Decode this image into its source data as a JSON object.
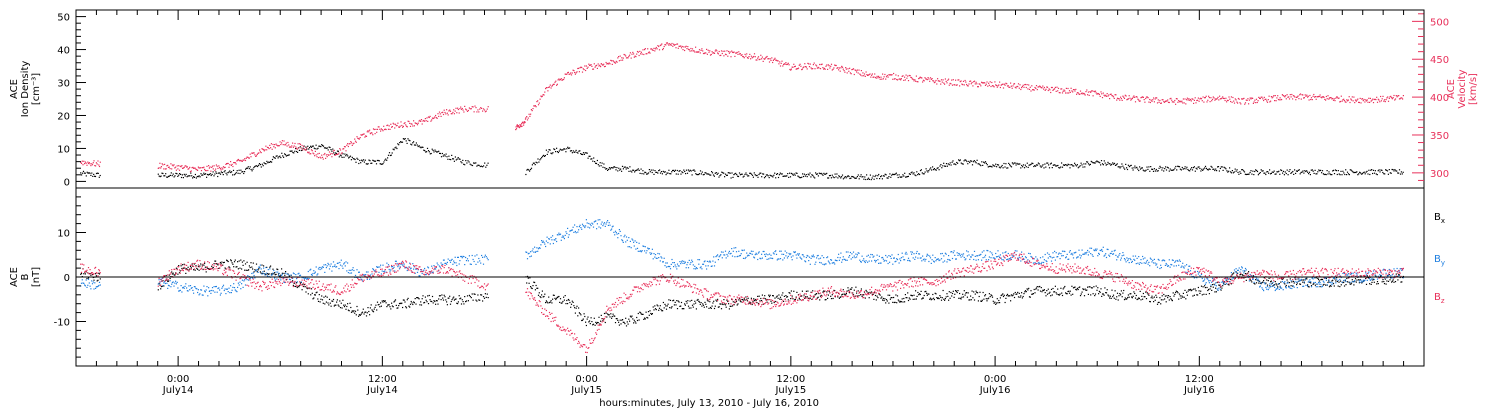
{
  "colors": {
    "axis": "#000000",
    "density": "#000000",
    "velocity": "#e8305a",
    "bx": "#000000",
    "by": "#1f7fe0",
    "bz": "#e8305a"
  },
  "chart_data": [
    {
      "type": "scatter",
      "panel": "top",
      "ylabel_lines": [
        "ACE",
        "Ion Density",
        "[cm⁻³]"
      ],
      "ylim": [
        -2,
        52
      ],
      "yticks": [
        0,
        10,
        20,
        30,
        40,
        50
      ],
      "yticklabels": [
        "0",
        "10",
        "20",
        "30",
        "40",
        "50"
      ],
      "y2label_lines": [
        "ACE",
        "Velocity",
        "[km/s]"
      ],
      "y2lim": [
        280,
        515
      ],
      "y2ticks": [
        300,
        350,
        400,
        450,
        500
      ],
      "y2ticklabels": [
        "300",
        "350",
        "400",
        "450",
        "500"
      ],
      "xlim_hours": [
        0,
        66
      ],
      "series": [
        {
          "axis": "left",
          "color_key": "density",
          "x": [
            0.2,
            1.2,
            2.8,
            4,
            5,
            6,
            7,
            8,
            9,
            10,
            11,
            12,
            13,
            14,
            15,
            16,
            17,
            18,
            19,
            20.2,
            20.8,
            21.5,
            22,
            23,
            24,
            25,
            26,
            27,
            28,
            29,
            30,
            31,
            32,
            33,
            34,
            35,
            36,
            37,
            38,
            39,
            40,
            41,
            42,
            43,
            44,
            45,
            46,
            47,
            48,
            49,
            50,
            51,
            52,
            53,
            54,
            55,
            56,
            57,
            58,
            59,
            60,
            61,
            62,
            63,
            64,
            65
          ],
          "y": [
            2.5,
            2,
            null,
            2,
            2,
            2,
            2.5,
            3,
            5,
            8,
            10,
            11,
            8,
            6,
            6,
            13,
            10,
            8,
            6,
            5,
            null,
            null,
            3,
            9,
            10,
            8,
            4,
            4,
            3,
            3,
            3,
            2.5,
            2,
            2,
            2,
            2,
            2,
            2,
            1.5,
            1.5,
            2,
            2.5,
            4,
            6,
            6,
            5,
            5,
            5,
            5,
            5,
            6,
            5,
            4,
            4,
            4,
            4,
            4,
            3,
            3,
            3,
            3,
            3,
            3,
            3,
            3,
            3
          ]
        },
        {
          "axis": "right",
          "color_key": "velocity",
          "x": [
            0.2,
            1.2,
            2.8,
            4,
            5,
            6,
            7,
            8,
            9,
            10,
            11,
            12,
            13,
            14,
            15,
            16,
            17,
            18,
            19,
            20.2,
            20.8,
            21.5,
            22,
            23,
            24,
            25,
            26,
            27,
            28,
            29,
            30,
            31,
            32,
            33,
            34,
            35,
            36,
            37,
            38,
            39,
            40,
            41,
            42,
            43,
            44,
            45,
            46,
            47,
            48,
            49,
            50,
            51,
            52,
            53,
            54,
            55,
            56,
            57,
            58,
            59,
            60,
            61,
            62,
            63,
            64,
            65
          ],
          "y": [
            315,
            312,
            null,
            310,
            308,
            305,
            308,
            315,
            330,
            340,
            335,
            322,
            330,
            350,
            360,
            365,
            368,
            380,
            385,
            385,
            null,
            360,
            370,
            410,
            430,
            440,
            445,
            455,
            462,
            470,
            465,
            460,
            458,
            455,
            450,
            440,
            442,
            440,
            435,
            428,
            428,
            425,
            422,
            420,
            418,
            417,
            415,
            412,
            410,
            408,
            405,
            400,
            398,
            396,
            395,
            397,
            400,
            395,
            397,
            400,
            401,
            400,
            398,
            397,
            398,
            400
          ]
        }
      ]
    },
    {
      "type": "scatter",
      "panel": "bottom",
      "ylabel_lines": [
        "ACE",
        "B",
        "[nT]"
      ],
      "ylim": [
        -20,
        20
      ],
      "yticks": [
        -10,
        0,
        10
      ],
      "yticklabels": [
        "-10",
        "0",
        "10"
      ],
      "zero_line": true,
      "xlim_hours": [
        0,
        66
      ],
      "xticks_hours": [
        5,
        15,
        25,
        35,
        45,
        55
      ],
      "xticklabels": [
        "0:00",
        "12:00",
        "0:00",
        "12:00",
        "0:00",
        "12:00"
      ],
      "xticklabels2": [
        "July14",
        "July14",
        "July15",
        "July15",
        "July16",
        "July16"
      ],
      "xlabel": "hours:minutes, July 13, 2010 - July 16, 2010",
      "legend": [
        {
          "main": "B",
          "sub": "x",
          "color_key": "bx"
        },
        {
          "main": "B",
          "sub": "y",
          "color_key": "by"
        },
        {
          "main": "B",
          "sub": "z",
          "color_key": "bz"
        }
      ],
      "series": [
        {
          "name": "Bx",
          "color_key": "bx",
          "x": [
            0.2,
            1.2,
            2.8,
            4,
            5,
            6,
            7,
            8,
            9,
            10,
            11,
            12,
            13,
            14,
            15,
            16,
            17,
            18,
            19,
            20.2,
            20.8,
            21.5,
            22,
            23,
            24,
            25,
            26,
            27,
            28,
            29,
            30,
            31,
            32,
            33,
            34,
            35,
            36,
            37,
            38,
            39,
            40,
            41,
            42,
            43,
            44,
            45,
            46,
            47,
            48,
            49,
            50,
            51,
            52,
            53,
            54,
            55,
            56,
            57,
            58,
            59,
            60,
            61,
            62,
            63,
            64,
            65
          ],
          "y": [
            1,
            0,
            null,
            -2,
            2,
            2,
            3,
            3,
            2,
            1,
            -2,
            -5,
            -6,
            -8,
            -6,
            -6,
            -5,
            -5,
            -5,
            -4,
            null,
            null,
            0,
            -5,
            -5,
            -10,
            -9,
            -10,
            -8,
            -6,
            -6,
            -6,
            -6,
            -5,
            -5,
            -4,
            -4,
            -4,
            -3,
            -4,
            -5,
            -4,
            -4,
            -4,
            -4,
            -5,
            -4,
            -3,
            -3,
            -3,
            -3,
            -4,
            -4,
            -5,
            -4,
            -3,
            -2,
            1,
            -1,
            -1,
            -1,
            -1,
            -1,
            -0.5,
            -0.5,
            0
          ]
        },
        {
          "name": "By",
          "color_key": "by",
          "x": [
            0.2,
            1.2,
            2.8,
            4,
            5,
            6,
            7,
            8,
            9,
            10,
            11,
            12,
            13,
            14,
            15,
            16,
            17,
            18,
            19,
            20.2,
            20.8,
            21.5,
            22,
            23,
            24,
            25,
            26,
            27,
            28,
            29,
            30,
            31,
            32,
            33,
            34,
            35,
            36,
            37,
            38,
            39,
            40,
            41,
            42,
            43,
            44,
            45,
            46,
            47,
            48,
            49,
            50,
            51,
            52,
            53,
            54,
            55,
            56,
            57,
            58,
            59,
            60,
            61,
            62,
            63,
            64,
            65
          ],
          "y": [
            -1,
            -2,
            null,
            -1,
            -2,
            -3,
            -3,
            -2,
            2,
            0,
            0,
            2,
            3,
            0,
            2,
            3,
            1,
            3,
            4,
            4,
            null,
            null,
            5,
            8,
            10,
            12,
            12,
            8,
            6,
            3,
            3,
            3,
            6,
            5,
            5,
            5,
            4,
            4,
            5,
            4,
            4,
            5,
            4,
            5,
            5,
            5,
            5,
            4,
            5,
            5,
            6,
            5,
            4,
            3,
            3,
            0,
            -2,
            2,
            -2,
            -2,
            -1,
            -1,
            0,
            0,
            1,
            1
          ]
        },
        {
          "name": "Bz",
          "color_key": "bz",
          "x": [
            0.2,
            1.2,
            2.8,
            4,
            5,
            6,
            7,
            8,
            9,
            10,
            11,
            12,
            13,
            14,
            15,
            16,
            17,
            18,
            19,
            20.2,
            20.8,
            21.5,
            22,
            23,
            24,
            25,
            26,
            27,
            28,
            29,
            30,
            31,
            32,
            33,
            34,
            35,
            36,
            37,
            38,
            39,
            40,
            41,
            42,
            43,
            44,
            45,
            46,
            47,
            48,
            49,
            50,
            51,
            52,
            53,
            54,
            55,
            56,
            57,
            58,
            59,
            60,
            61,
            62,
            63,
            64,
            65
          ],
          "y": [
            2,
            1,
            null,
            -1,
            2,
            3,
            2,
            0,
            -2,
            -1,
            -1,
            -2,
            -3,
            0,
            1,
            3,
            1,
            2,
            0,
            -2,
            null,
            null,
            -3,
            -8,
            -12,
            -16,
            -7,
            -4,
            -1,
            0,
            -2,
            -4,
            -5,
            -5,
            -6,
            -5,
            -4,
            -3,
            -4,
            -3,
            -2,
            -1,
            -1,
            1,
            2,
            3,
            5,
            3,
            2,
            2,
            1,
            0,
            -2,
            -3,
            0,
            2,
            -1,
            0,
            1,
            0,
            1,
            1,
            1,
            1,
            1,
            1
          ]
        }
      ]
    }
  ]
}
